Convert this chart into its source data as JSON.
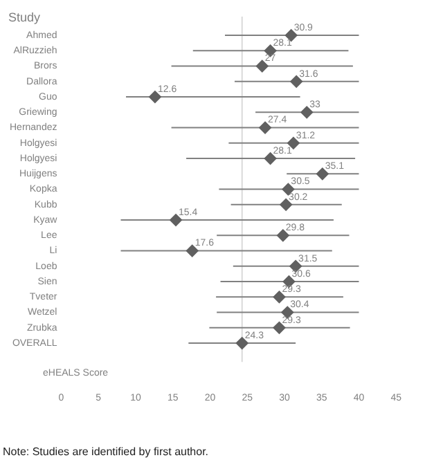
{
  "chart_data": {
    "type": "scatter",
    "orientation": "horizontal",
    "ylabel": "Study",
    "xlabel": "eHEALS Score",
    "categories": [
      "Ahmed",
      "AlRuzzieh",
      "Brors",
      "Dallora",
      "Guo",
      "Griewing",
      "Hernandez",
      "Holgyesi",
      "Holgyesi",
      "Huijgens",
      "Kopka",
      "Kubb",
      "Kyaw",
      "Lee",
      "Li",
      "Loeb",
      "Sien",
      "Tveter",
      "Wetzel",
      "Zrubka",
      "OVERALL"
    ],
    "values": [
      30.9,
      28.1,
      27,
      31.6,
      12.6,
      33,
      27.4,
      31.2,
      28.1,
      35.1,
      30.5,
      30.2,
      15.4,
      29.8,
      17.6,
      31.5,
      30.6,
      29.3,
      30.4,
      29.3,
      24.3
    ],
    "errors": [
      [
        22,
        40
      ],
      [
        17.7,
        38.6
      ],
      [
        14.8,
        39.2
      ],
      [
        23.3,
        40
      ],
      [
        8.7,
        32.1
      ],
      [
        26.1,
        40
      ],
      [
        14.8,
        40
      ],
      [
        22.5,
        40
      ],
      [
        16.8,
        39.5
      ],
      [
        30.3,
        40
      ],
      [
        21.2,
        40
      ],
      [
        22.8,
        37.7
      ],
      [
        8,
        36.6
      ],
      [
        20.9,
        38.7
      ],
      [
        8,
        36.4
      ],
      [
        23.1,
        40
      ],
      [
        21.4,
        40
      ],
      [
        20.8,
        37.9
      ],
      [
        20.9,
        40
      ],
      [
        19.9,
        38.8
      ],
      [
        17.1,
        31.5
      ]
    ],
    "color": "#606060",
    "marker": "diamond",
    "data_labels": true,
    "xlim": [
      0,
      45
    ],
    "xticks": [
      0,
      5,
      10,
      15,
      20,
      25,
      30,
      35,
      40,
      45
    ],
    "ref_lines": [
      {
        "axis": "x",
        "value": 24.3,
        "color": "#d9d9d9"
      }
    ],
    "grid": false,
    "legend": false,
    "annotations": [
      "Note: Studies are identified by first author."
    ]
  }
}
